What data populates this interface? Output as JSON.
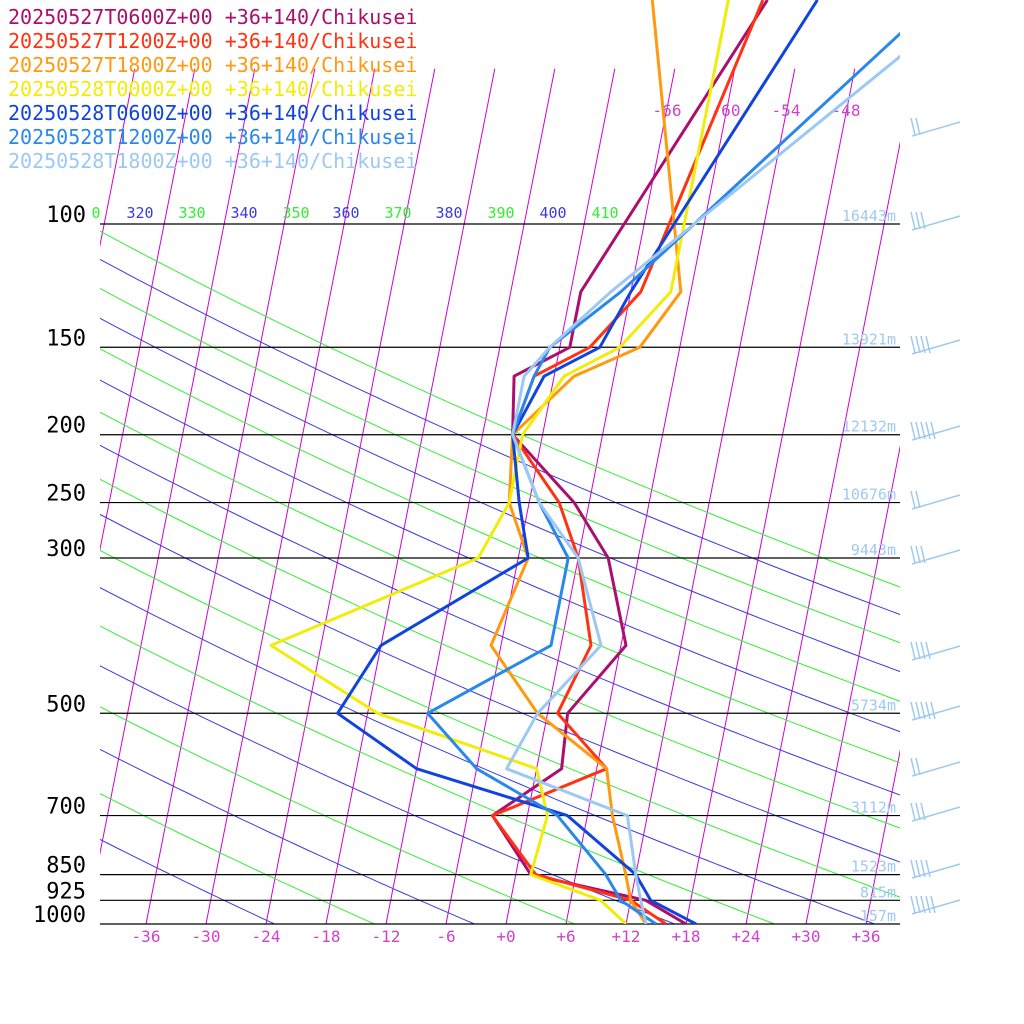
{
  "colors": {
    "isobar": "#000000",
    "isotherm": "#d000d0",
    "dry_adiabat": "#3a3ae0",
    "moist_adiabat": "#33ee33",
    "tick_label": "#cc44cc",
    "height_label": "#9ecaf0",
    "wind_barb": "#9ecaf0"
  },
  "chart_data": {
    "type": "line",
    "chart_kind": "skew-T log-p sounding",
    "xlabel": "",
    "ylabel": "",
    "x_ticks": [
      "-36",
      "-30",
      "-24",
      "-18",
      "-12",
      "-6",
      "+0",
      "+6",
      "+12",
      "+18",
      "+24",
      "+30",
      "+36"
    ],
    "pressure_levels": [
      "100",
      "150",
      "200",
      "250",
      "300",
      "500",
      "700",
      "850",
      "925",
      "1000"
    ],
    "height_labels": [
      {
        "p": 100,
        "label": "16443m"
      },
      {
        "p": 150,
        "label": "13921m"
      },
      {
        "p": 200,
        "label": "12132m"
      },
      {
        "p": 250,
        "label": "10676m"
      },
      {
        "p": 300,
        "label": "9443m"
      },
      {
        "p": 500,
        "label": "5734m"
      },
      {
        "p": 700,
        "label": "3112m"
      },
      {
        "p": 850,
        "label": "1523m"
      },
      {
        "p": 925,
        "label": "815m"
      },
      {
        "p": 1000,
        "label": "157m"
      }
    ],
    "theta_labels": [
      "0",
      "320",
      "330",
      "340",
      "350",
      "360",
      "370",
      "380",
      "390",
      "400",
      "410"
    ],
    "upper_isotherm_labels": [
      "-66",
      "-60",
      "-54",
      "-48"
    ],
    "series": [
      {
        "name": "20250527T0600Z+00 +36+140/Chikusei",
        "color": "#aa0f6e",
        "points": [
          [
            1000,
            18
          ],
          [
            925,
            13.5
          ],
          [
            850,
            1.5
          ],
          [
            700,
            -3.5
          ],
          [
            600,
            2.5
          ],
          [
            500,
            2
          ],
          [
            400,
            6.5
          ],
          [
            300,
            3
          ],
          [
            250,
            -1.5
          ],
          [
            200,
            -9
          ],
          [
            165,
            -10
          ],
          [
            150,
            -5
          ],
          [
            125,
            -5
          ],
          [
            100,
            -2
          ]
        ]
      },
      {
        "name": "20250527T1200Z+00 +36+140/Chikusei",
        "color": "#ff3311",
        "points": [
          [
            1000,
            16
          ],
          [
            925,
            12
          ],
          [
            850,
            2
          ],
          [
            700,
            -3.5
          ],
          [
            600,
            7
          ],
          [
            500,
            1
          ],
          [
            400,
            3
          ],
          [
            300,
            0
          ],
          [
            250,
            -3
          ],
          [
            200,
            -9
          ],
          [
            165,
            -8
          ],
          [
            150,
            -3
          ],
          [
            125,
            1
          ],
          [
            100,
            2.5
          ]
        ]
      },
      {
        "name": "20250527T1800Z+00 +36+140/Chikusei",
        "color": "#ff9910",
        "points": [
          [
            1000,
            14
          ],
          [
            925,
            12
          ],
          [
            850,
            11
          ],
          [
            700,
            8.5
          ],
          [
            600,
            7
          ],
          [
            500,
            -1
          ],
          [
            400,
            -7
          ],
          [
            300,
            -5
          ],
          [
            250,
            -8
          ],
          [
            200,
            -9
          ],
          [
            165,
            -4
          ],
          [
            150,
            2
          ],
          [
            125,
            5
          ],
          [
            100,
            3
          ]
        ]
      },
      {
        "name": "20250528T0000Z+00 +36+140/Chikusei",
        "color": "#f2ec0a",
        "points": [
          [
            1000,
            12
          ],
          [
            925,
            9
          ],
          [
            850,
            1.5
          ],
          [
            700,
            2
          ],
          [
            600,
            0
          ],
          [
            500,
            -17
          ],
          [
            400,
            -29
          ],
          [
            300,
            -10
          ],
          [
            250,
            -8
          ],
          [
            200,
            -8
          ],
          [
            165,
            -5
          ],
          [
            150,
            0
          ],
          [
            125,
            4
          ],
          [
            100,
            4
          ]
        ]
      },
      {
        "name": "20250528T0600Z+00 +36+140/Chikusei",
        "color": "#1144dd",
        "points": [
          [
            1000,
            19
          ],
          [
            925,
            14
          ],
          [
            850,
            12
          ],
          [
            700,
            4
          ],
          [
            600,
            -12
          ],
          [
            500,
            -21
          ],
          [
            400,
            -18
          ],
          [
            300,
            -5
          ],
          [
            250,
            -7
          ],
          [
            200,
            -9
          ],
          [
            165,
            -7
          ],
          [
            150,
            -2
          ],
          [
            125,
            0
          ],
          [
            100,
            3
          ]
        ]
      },
      {
        "name": "20250528T1200Z+00 +36+140/Chikusei",
        "color": "#2a88ea",
        "points": [
          [
            1000,
            15
          ],
          [
            925,
            11
          ],
          [
            850,
            9
          ],
          [
            700,
            3
          ],
          [
            600,
            -6
          ],
          [
            500,
            -12
          ],
          [
            400,
            -1
          ],
          [
            300,
            -1
          ],
          [
            250,
            -5
          ],
          [
            200,
            -9
          ],
          [
            165,
            -8
          ],
          [
            150,
            -7
          ],
          [
            125,
            -1
          ],
          [
            100,
            5
          ]
        ]
      },
      {
        "name": "20250528T1800Z+00 +36+140/Chikusei",
        "color": "#9cc8f4",
        "points": [
          [
            1000,
            14
          ],
          [
            925,
            13
          ],
          [
            850,
            12
          ],
          [
            700,
            10
          ],
          [
            600,
            -3
          ],
          [
            500,
            -1
          ],
          [
            400,
            4
          ],
          [
            300,
            0
          ],
          [
            250,
            -5
          ],
          [
            200,
            -9
          ],
          [
            165,
            -9
          ],
          [
            150,
            -7
          ],
          [
            125,
            -2
          ],
          [
            100,
            5
          ]
        ]
      }
    ]
  }
}
